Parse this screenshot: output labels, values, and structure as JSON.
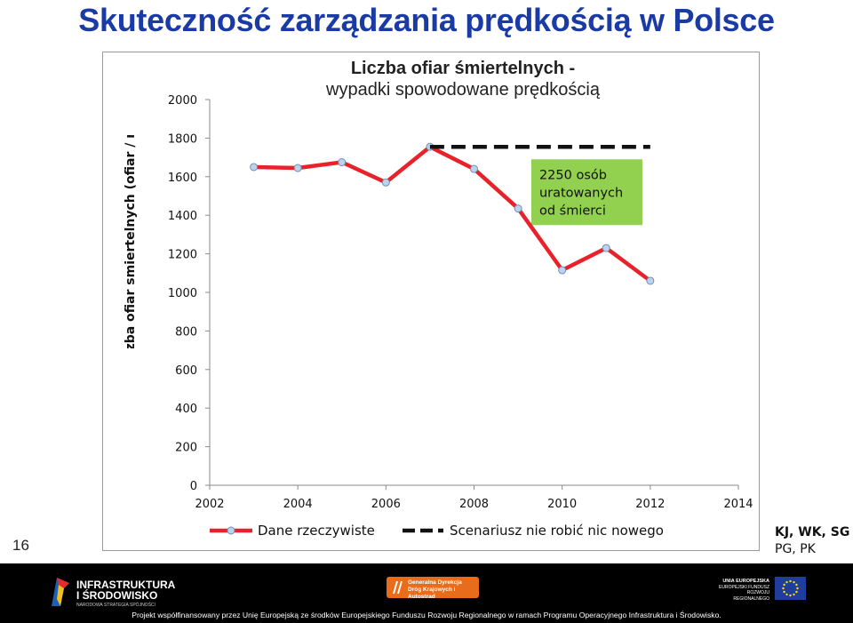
{
  "slide": {
    "title": "Skuteczność zarządzania prędkością w Polsce",
    "number": "16",
    "authors_line1": "KJ, WK, SG",
    "authors_line2": "PG, PK"
  },
  "footer": {
    "logo_left_line1": "INFRASTRUKTURA",
    "logo_left_line2": "I ŚRODOWISKO",
    "logo_left_sub": "NARODOWA STRATEGIA SPÓJNOŚCI",
    "gddkia_line1": "Generalna Dyrekcja",
    "gddkia_line2": "Dróg Krajowych i Autostrad",
    "eu_line1": "UNIA EUROPEJSKA",
    "eu_line2": "EUROPEJSKI FUNDUSZ",
    "eu_line3": "ROZWOJU REGIONALNEGO",
    "text": "Projekt współfinansowany przez Unię Europejską ze środków Europejskiego Funduszu Rozwoju Regionalnego w ramach Programu Operacyjnego Infrastruktura i Środowisko."
  },
  "chart_data": {
    "type": "line",
    "title_line1": "Liczba ofiar śmiertelnych -",
    "title_line2": "wypadki spowodowane prędkością",
    "xlabel": "",
    "ylabel": "Liczba ofiar smiertelnych (ofiar / rok)",
    "xlim": [
      2002,
      2014
    ],
    "ylim": [
      0,
      2000
    ],
    "x_ticks": [
      2002,
      2004,
      2006,
      2008,
      2010,
      2012,
      2014
    ],
    "y_ticks": [
      0,
      200,
      400,
      600,
      800,
      1000,
      1200,
      1400,
      1600,
      1800,
      2000
    ],
    "grid": false,
    "legend_position": "bottom",
    "series": [
      {
        "name": "Dane rzeczywiste",
        "color": "#e8222a",
        "marker_color": "#bcd3ec",
        "style": "solid",
        "x": [
          2003,
          2004,
          2005,
          2006,
          2007,
          2008,
          2009,
          2010,
          2011,
          2012
        ],
        "y": [
          1650,
          1645,
          1675,
          1570,
          1755,
          1640,
          1435,
          1115,
          1230,
          1060
        ]
      },
      {
        "name": "Scenariusz nie robić nic nowego",
        "color": "#111111",
        "style": "dashed",
        "x": [
          2007,
          2012
        ],
        "y": [
          1755,
          1755
        ]
      }
    ],
    "annotation": {
      "lines": [
        "2250 osób",
        "uratowanych",
        "od śmierci"
      ],
      "background": "#92d050"
    }
  }
}
